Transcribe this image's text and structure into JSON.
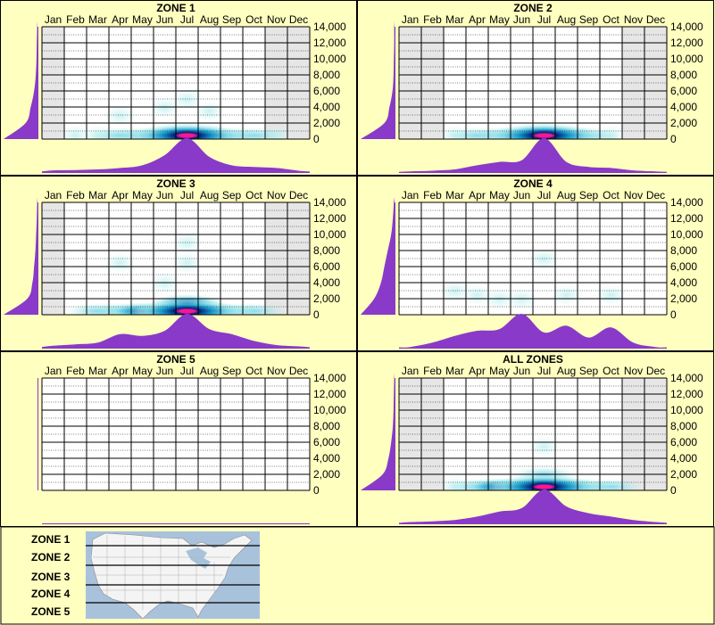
{
  "months": [
    "Jan",
    "Feb",
    "Mar",
    "Apr",
    "May",
    "Jun",
    "Jul",
    "Aug",
    "Sep",
    "Oct",
    "Nov",
    "Dec"
  ],
  "y_ticks": [
    "14,000",
    "12,000",
    "10,000",
    "8,000",
    "6,000",
    "4,000",
    "2,000",
    "0"
  ],
  "colors": {
    "background": "#ffffc0",
    "grid_fill": "#ffffff",
    "shaded_month": "#e6e6e6",
    "profile": "#8a3ac8",
    "heat_low": "#bff0f0",
    "heat_mid": "#1aa0d0",
    "heat_high": "#00207a",
    "heat_peak": "#ff1493"
  },
  "chart_data": [
    {
      "type": "heatmap",
      "title": "ZONE 1",
      "x": "months (Jan–Dec)",
      "ylim": [
        0,
        14000
      ],
      "shaded_months": [
        "Jan",
        "Nov",
        "Dec"
      ],
      "monthly_profile": [
        0.05,
        0.06,
        0.08,
        0.12,
        0.2,
        0.5,
        1.0,
        0.45,
        0.2,
        0.15,
        0.12,
        0.04
      ],
      "elevation_profile": [
        1.0,
        0.35,
        0.2,
        0.1,
        0.05,
        0.03,
        0.02,
        0.01
      ],
      "hotspots": [
        {
          "month": 7,
          "elev": 0,
          "intensity": 1.0
        },
        {
          "month": 6,
          "elev": 0,
          "intensity": 0.8
        },
        {
          "month": 8,
          "elev": 0,
          "intensity": 0.7
        },
        {
          "month": 5,
          "elev": 0,
          "intensity": 0.45
        },
        {
          "month": 9,
          "elev": 0,
          "intensity": 0.35
        },
        {
          "month": 4,
          "elev": 0,
          "intensity": 0.25
        },
        {
          "month": 10,
          "elev": 0,
          "intensity": 0.2
        },
        {
          "month": 3,
          "elev": 0,
          "intensity": 0.15
        },
        {
          "month": 2,
          "elev": 0,
          "intensity": 0.12
        },
        {
          "month": 11,
          "elev": 0,
          "intensity": 0.1
        },
        {
          "month": 7,
          "elev": 4500,
          "intensity": 0.18
        },
        {
          "month": 6,
          "elev": 3500,
          "intensity": 0.12
        },
        {
          "month": 8,
          "elev": 3000,
          "intensity": 0.1
        },
        {
          "month": 4,
          "elev": 2500,
          "intensity": 0.08
        }
      ]
    },
    {
      "type": "heatmap",
      "title": "ZONE 2",
      "x": "months (Jan–Dec)",
      "ylim": [
        0,
        14000
      ],
      "shaded_months": [
        "Jan",
        "Feb",
        "Nov",
        "Dec"
      ],
      "monthly_profile": [
        0.02,
        0.04,
        0.08,
        0.2,
        0.3,
        0.35,
        1.0,
        0.3,
        0.15,
        0.12,
        0.05,
        0.02
      ],
      "elevation_profile": [
        1.0,
        0.3,
        0.15,
        0.06,
        0.03,
        0.02,
        0.01,
        0.01
      ],
      "hotspots": [
        {
          "month": 7,
          "elev": 0,
          "intensity": 1.0
        },
        {
          "month": 6,
          "elev": 0,
          "intensity": 0.55
        },
        {
          "month": 8,
          "elev": 0,
          "intensity": 0.5
        },
        {
          "month": 5,
          "elev": 0,
          "intensity": 0.3
        },
        {
          "month": 4,
          "elev": 0,
          "intensity": 0.2
        },
        {
          "month": 9,
          "elev": 0,
          "intensity": 0.2
        },
        {
          "month": 10,
          "elev": 0,
          "intensity": 0.15
        },
        {
          "month": 3,
          "elev": 0,
          "intensity": 0.1
        }
      ]
    },
    {
      "type": "heatmap",
      "title": "ZONE 3",
      "x": "months (Jan–Dec)",
      "ylim": [
        0,
        14000
      ],
      "shaded_months": [
        "Jan",
        "Nov",
        "Dec"
      ],
      "monthly_profile": [
        0.06,
        0.1,
        0.15,
        0.4,
        0.35,
        0.5,
        1.0,
        0.55,
        0.4,
        0.2,
        0.08,
        0.04
      ],
      "elevation_profile": [
        1.0,
        0.3,
        0.15,
        0.1,
        0.06,
        0.04,
        0.02,
        0.01
      ],
      "hotspots": [
        {
          "month": 7,
          "elev": 0,
          "intensity": 1.0
        },
        {
          "month": 6,
          "elev": 0,
          "intensity": 0.8
        },
        {
          "month": 8,
          "elev": 0,
          "intensity": 0.7
        },
        {
          "month": 5,
          "elev": 0,
          "intensity": 0.5
        },
        {
          "month": 9,
          "elev": 0,
          "intensity": 0.45
        },
        {
          "month": 4,
          "elev": 0,
          "intensity": 0.35
        },
        {
          "month": 10,
          "elev": 0,
          "intensity": 0.25
        },
        {
          "month": 3,
          "elev": 0,
          "intensity": 0.2
        },
        {
          "month": 7,
          "elev": 1000,
          "intensity": 0.5
        },
        {
          "month": 4,
          "elev": 6000,
          "intensity": 0.12
        },
        {
          "month": 7,
          "elev": 6000,
          "intensity": 0.12
        },
        {
          "month": 7,
          "elev": 8500,
          "intensity": 0.12
        },
        {
          "month": 6,
          "elev": 3500,
          "intensity": 0.1
        }
      ]
    },
    {
      "type": "heatmap",
      "title": "ZONE 4",
      "x": "months (Jan–Dec)",
      "ylim": [
        0,
        14000
      ],
      "shaded_months": [],
      "monthly_profile": [
        0.02,
        0.15,
        0.35,
        0.5,
        0.55,
        1.0,
        0.45,
        0.65,
        0.3,
        0.6,
        0.15,
        0.02
      ],
      "elevation_profile": [
        1.0,
        0.6,
        0.4,
        0.3,
        0.2,
        0.1,
        0.05,
        0.02
      ],
      "hotspots": [
        {
          "month": 6,
          "elev": 1500,
          "intensity": 0.15
        },
        {
          "month": 4,
          "elev": 2000,
          "intensity": 0.1
        },
        {
          "month": 8,
          "elev": 2000,
          "intensity": 0.12
        },
        {
          "month": 10,
          "elev": 2000,
          "intensity": 0.12
        },
        {
          "month": 7,
          "elev": 6500,
          "intensity": 0.08
        },
        {
          "month": 5,
          "elev": 1500,
          "intensity": 0.1
        },
        {
          "month": 3,
          "elev": 2500,
          "intensity": 0.08
        }
      ]
    },
    {
      "type": "heatmap",
      "title": "ZONE 5",
      "x": "months (Jan–Dec)",
      "ylim": [
        0,
        14000
      ],
      "shaded_months": [],
      "monthly_profile": [],
      "elevation_profile": [],
      "hotspots": []
    },
    {
      "type": "heatmap",
      "title": "ALL ZONES",
      "x": "months (Jan–Dec)",
      "ylim": [
        0,
        14000
      ],
      "shaded_months": [
        "Jan",
        "Feb",
        "Nov",
        "Dec"
      ],
      "monthly_profile": [
        0.04,
        0.06,
        0.1,
        0.2,
        0.35,
        0.45,
        1.0,
        0.5,
        0.3,
        0.2,
        0.1,
        0.04
      ],
      "elevation_profile": [
        1.0,
        0.35,
        0.18,
        0.1,
        0.05,
        0.03,
        0.02,
        0.01
      ],
      "hotspots": [
        {
          "month": 7,
          "elev": 0,
          "intensity": 1.0
        },
        {
          "month": 6,
          "elev": 0,
          "intensity": 0.75
        },
        {
          "month": 8,
          "elev": 0,
          "intensity": 0.7
        },
        {
          "month": 5,
          "elev": 0,
          "intensity": 0.5
        },
        {
          "month": 9,
          "elev": 0,
          "intensity": 0.4
        },
        {
          "month": 4,
          "elev": 0,
          "intensity": 0.3
        },
        {
          "month": 10,
          "elev": 0,
          "intensity": 0.25
        },
        {
          "month": 3,
          "elev": 0,
          "intensity": 0.15
        },
        {
          "month": 7,
          "elev": 1500,
          "intensity": 0.3
        },
        {
          "month": 7,
          "elev": 5000,
          "intensity": 0.1
        }
      ]
    }
  ],
  "legend": {
    "zones": [
      "ZONE 1",
      "ZONE 2",
      "ZONE 3",
      "ZONE 4",
      "ZONE 5"
    ]
  }
}
